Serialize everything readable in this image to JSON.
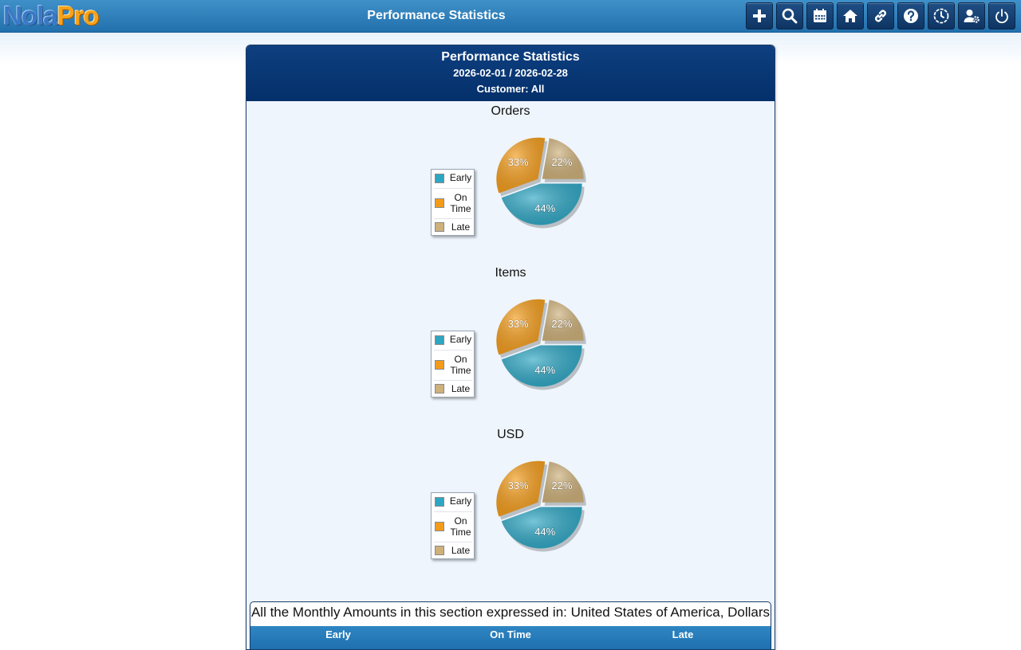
{
  "app": {
    "logo_part1": "Nola",
    "logo_part2": "Pro",
    "title": "Performance Statistics"
  },
  "toolbar": {
    "icons": [
      "plus-icon",
      "search-icon",
      "calendar-icon",
      "home-icon",
      "link-icon",
      "help-icon",
      "clock-icon",
      "user-settings-icon",
      "power-icon"
    ]
  },
  "report": {
    "title": "Performance Statistics",
    "date_range": "2026-02-01 / 2026-02-28",
    "customer": "Customer: All"
  },
  "colors": {
    "early": "#2ea6c3",
    "on_time": "#f39c1b",
    "late": "#cdb07a"
  },
  "chart_data": [
    {
      "type": "pie",
      "title": "Orders",
      "legend_placement": "left",
      "labels": [
        "Early",
        "On Time",
        "Late"
      ],
      "values": [
        44,
        33,
        22
      ],
      "value_labels": [
        "44%",
        "33%",
        "22%"
      ]
    },
    {
      "type": "pie",
      "title": "Items",
      "legend_placement": "left",
      "labels": [
        "Early",
        "On Time",
        "Late"
      ],
      "values": [
        44,
        33,
        22
      ],
      "value_labels": [
        "44%",
        "33%",
        "22%"
      ]
    },
    {
      "type": "pie",
      "title": "USD",
      "legend_placement": "left",
      "labels": [
        "Early",
        "On Time",
        "Late"
      ],
      "values": [
        44,
        33,
        22
      ],
      "value_labels": [
        "44%",
        "33%",
        "22%"
      ]
    }
  ],
  "summary": {
    "caption": "All the Monthly Amounts in this section expressed in: United States of America, Dollars",
    "columns": [
      "Early",
      "On Time",
      "Late"
    ]
  }
}
